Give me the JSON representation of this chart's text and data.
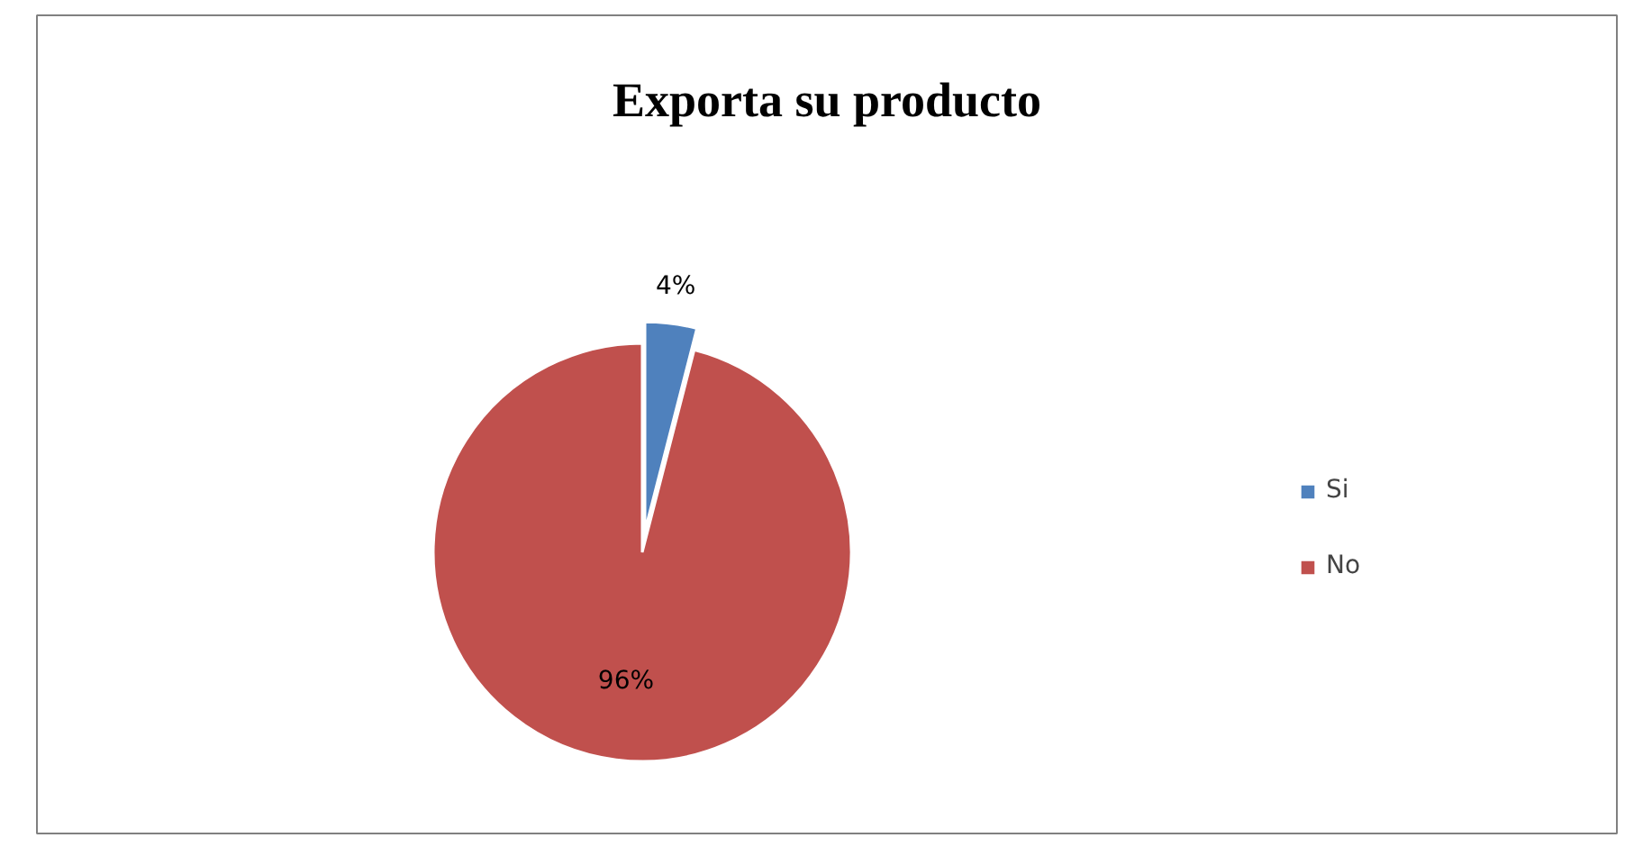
{
  "chart_data": {
    "type": "pie",
    "title": "Exporta su producto",
    "categories": [
      "Si",
      "No"
    ],
    "values": [
      4,
      96
    ],
    "colors": [
      "#4f81bd",
      "#c0504d"
    ],
    "value_labels": [
      "4%",
      "96%"
    ],
    "legend": "right"
  }
}
